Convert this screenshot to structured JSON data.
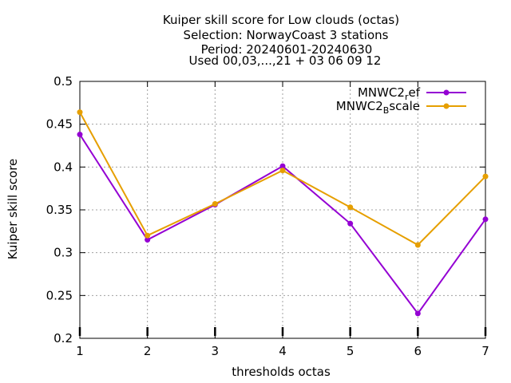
{
  "chart_data": {
    "type": "line",
    "title_lines": [
      "Kuiper skill score  for Low clouds (octas)",
      "Selection: NorwayCoast      3 stations",
      "Period: 20240601-20240630",
      "Used 00,03,...,21 + 03 06 09 12"
    ],
    "xlabel": "thresholds octas",
    "ylabel": "Kuiper skill score",
    "x": [
      1,
      2,
      3,
      4,
      5,
      6,
      7
    ],
    "xlim": [
      1,
      7
    ],
    "ylim": [
      0.2,
      0.5
    ],
    "yticks": [
      "0.2",
      "0.25",
      "0.3",
      "0.35",
      "0.4",
      "0.45",
      "0.5"
    ],
    "grid": true,
    "legend_position": "top-right",
    "series": [
      {
        "name_base": "MNWC2",
        "name_sub": "r",
        "name_rest": "ef",
        "color": "#9400d3",
        "values": [
          0.438,
          0.315,
          0.356,
          0.401,
          0.334,
          0.229,
          0.339
        ]
      },
      {
        "name_base": "MNWC2",
        "name_sub": "B",
        "name_rest": "scale",
        "color": "#e69f00",
        "values": [
          0.464,
          0.32,
          0.357,
          0.396,
          0.353,
          0.309,
          0.389
        ]
      }
    ]
  }
}
